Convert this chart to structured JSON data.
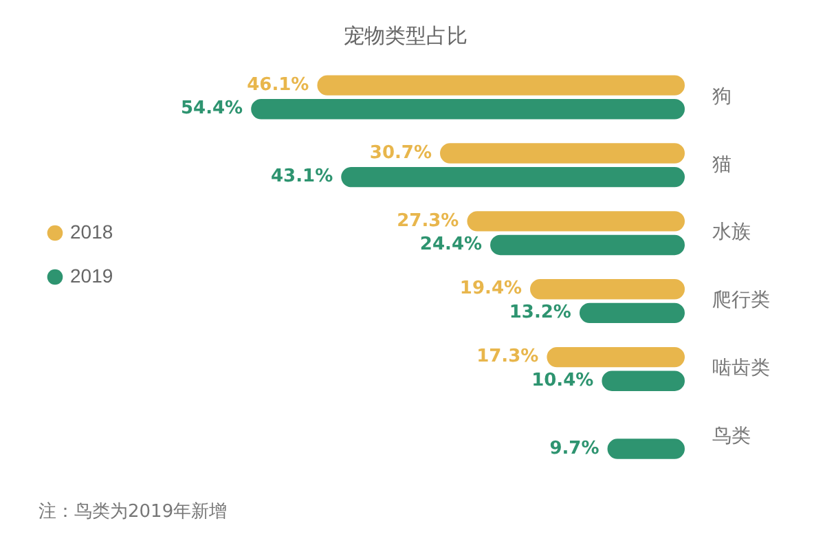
{
  "chart_data": {
    "type": "bar",
    "orientation": "horizontal",
    "title": "宠物类型占比",
    "categories": [
      "狗",
      "猫",
      "水族",
      "爬行类",
      "啮齿类",
      "鸟类"
    ],
    "series": [
      {
        "name": "2018",
        "color": "#e8b64c",
        "values": [
          46.1,
          30.7,
          27.3,
          19.4,
          17.3,
          null
        ],
        "value_labels": [
          "46.1%",
          "30.7%",
          "27.3%",
          "19.4%",
          "17.3%",
          null
        ]
      },
      {
        "name": "2019",
        "color": "#2e9470",
        "values": [
          54.4,
          43.1,
          24.4,
          13.2,
          10.4,
          9.7
        ],
        "value_labels": [
          "54.4%",
          "43.1%",
          "24.4%",
          "13.2%",
          "10.4%",
          "9.7%"
        ]
      }
    ],
    "legend": "left",
    "grid": false,
    "tick_labels": "y",
    "annotations": [
      "注：鸟类为2019年新增"
    ]
  }
}
